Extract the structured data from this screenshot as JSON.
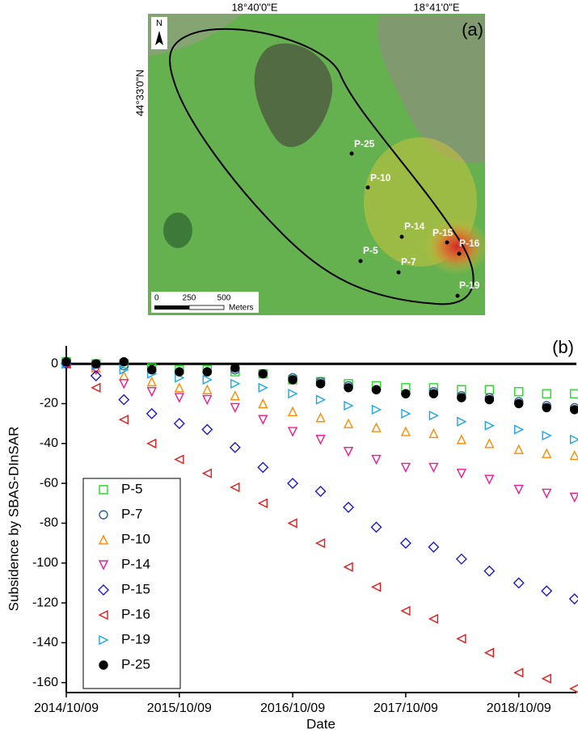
{
  "map": {
    "panel_label": "(a)",
    "lon_labels": [
      "18°40'0\"E",
      "18°41'0\"E"
    ],
    "lat_label": "44°33'0\"N",
    "north": "N",
    "points": [
      "P-25",
      "P-10",
      "P-14",
      "P-15",
      "P-16",
      "P-5",
      "P-7",
      "P-19"
    ],
    "scale": {
      "ticks": [
        "0",
        "250",
        "500"
      ],
      "unit": "Meters"
    }
  },
  "chart_data": {
    "type": "scatter",
    "panel_label": "(b)",
    "x_label": "Date",
    "y_label": "Subsidence by SBAS-DInSAR",
    "x": [
      "2014/10/09",
      "2015/01/13",
      "2015/04/13",
      "2015/07/12",
      "2015/10/09",
      "2016/01/07",
      "2016/04/06",
      "2016/07/05",
      "2016/10/09",
      "2017/01/07",
      "2017/04/07",
      "2017/07/06",
      "2017/10/09",
      "2018/01/07",
      "2018/04/07",
      "2018/07/06",
      "2018/10/09",
      "2019/01/07",
      "2019/04/07"
    ],
    "xlim": [
      "2014/10/09",
      "2019/04/13"
    ],
    "xticks": [
      "2014/10/09",
      "2015/10/09",
      "2016/10/09",
      "2017/10/09",
      "2018/10/09"
    ],
    "ylim": [
      -165,
      9
    ],
    "yticks": [
      0,
      -20,
      -40,
      -60,
      -80,
      -100,
      -120,
      -140,
      -160
    ],
    "series": [
      {
        "name": "P-5",
        "color": "#22dd22",
        "marker": "square",
        "values": [
          1,
          0,
          0,
          -2,
          -3,
          -3,
          -4,
          -5,
          -8,
          -9,
          -10,
          -11,
          -12,
          -12,
          -13,
          -13,
          -14,
          -15,
          -15
        ]
      },
      {
        "name": "P-7",
        "color": "#2a5d9a",
        "marker": "circle",
        "values": [
          0,
          0,
          -1,
          -3,
          -4,
          -4,
          -3,
          -5,
          -7,
          -9,
          -11,
          -13,
          -15,
          -14,
          -16,
          -17,
          -19,
          -21,
          -22
        ]
      },
      {
        "name": "P-10",
        "color": "#ff8c00",
        "marker": "triangle-up",
        "values": [
          0,
          -2,
          -6,
          -9,
          -12,
          -13,
          -16,
          -20,
          -24,
          -27,
          -30,
          -32,
          -34,
          -35,
          -38,
          -40,
          -43,
          -45,
          -46
        ]
      },
      {
        "name": "P-14",
        "color": "#ee1a90",
        "marker": "triangle-down",
        "values": [
          0,
          -3,
          -10,
          -14,
          -17,
          -18,
          -22,
          -28,
          -34,
          -38,
          -44,
          -48,
          -52,
          -52,
          -55,
          -58,
          -63,
          -65,
          -67
        ]
      },
      {
        "name": "P-15",
        "color": "#1a1acc",
        "marker": "diamond",
        "values": [
          0,
          -6,
          -18,
          -25,
          -30,
          -33,
          -42,
          -52,
          -60,
          -64,
          -72,
          -82,
          -90,
          -92,
          -98,
          -104,
          -110,
          -114,
          -118
        ]
      },
      {
        "name": "P-16",
        "color": "#e81818",
        "marker": "triangle-left",
        "values": [
          0,
          -12,
          -28,
          -40,
          -48,
          -55,
          -62,
          -70,
          -80,
          -90,
          -102,
          -112,
          -124,
          -128,
          -138,
          -145,
          -155,
          -158,
          -163
        ]
      },
      {
        "name": "P-19",
        "color": "#1aa6ee",
        "marker": "triangle-right",
        "values": [
          0,
          -1,
          -3,
          -5,
          -7,
          -8,
          -10,
          -12,
          -15,
          -18,
          -21,
          -23,
          -25,
          -26,
          -29,
          -31,
          -33,
          -36,
          -38
        ]
      },
      {
        "name": "P-25",
        "color": "#000000",
        "marker": "filled-circle",
        "values": [
          1,
          0,
          1,
          -3,
          -4,
          -4,
          -2,
          -5,
          -8,
          -10,
          -12,
          -13,
          -15,
          -15,
          -17,
          -18,
          -20,
          -22,
          -23
        ]
      }
    ]
  }
}
